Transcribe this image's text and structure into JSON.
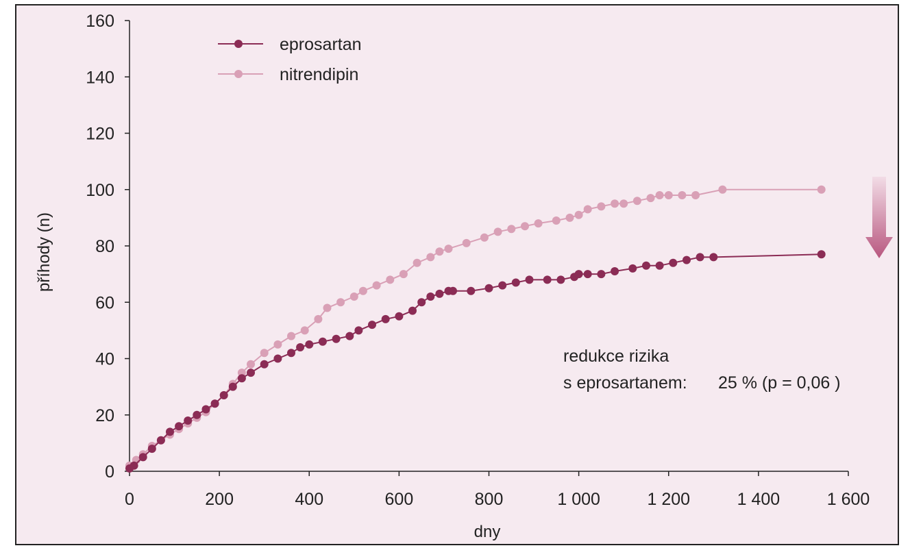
{
  "chart_data": {
    "type": "line",
    "xlabel": "dny",
    "ylabel": "příhody (n)",
    "xlim": [
      0,
      1600
    ],
    "ylim": [
      0,
      160
    ],
    "xticks": [
      0,
      200,
      400,
      600,
      800,
      1000,
      1200,
      1400,
      1600
    ],
    "xtick_labels": [
      "0",
      "200",
      "400",
      "600",
      "800",
      "1 000",
      "1 200",
      "1 400",
      "1 600"
    ],
    "yticks": [
      0,
      20,
      40,
      60,
      80,
      100,
      120,
      140,
      160
    ],
    "ytick_labels": [
      "0",
      "20",
      "40",
      "60",
      "80",
      "100",
      "120",
      "140",
      "160"
    ],
    "grid": false,
    "legend_position": "top-left",
    "series": [
      {
        "name": "eprosartan",
        "color": "#8b2c55",
        "x": [
          0,
          10,
          30,
          50,
          70,
          90,
          110,
          130,
          150,
          170,
          190,
          210,
          230,
          250,
          270,
          300,
          330,
          360,
          380,
          400,
          430,
          460,
          490,
          510,
          540,
          570,
          600,
          630,
          650,
          670,
          690,
          710,
          720,
          760,
          800,
          830,
          860,
          890,
          930,
          960,
          990,
          1000,
          1020,
          1050,
          1080,
          1120,
          1150,
          1180,
          1210,
          1240,
          1270,
          1300,
          1540
        ],
        "y": [
          1,
          2,
          5,
          8,
          11,
          14,
          16,
          18,
          20,
          22,
          24,
          27,
          30,
          33,
          35,
          38,
          40,
          42,
          44,
          45,
          46,
          47,
          48,
          50,
          52,
          54,
          55,
          57,
          60,
          62,
          63,
          64,
          64,
          64,
          65,
          66,
          67,
          68,
          68,
          68,
          69,
          70,
          70,
          70,
          71,
          72,
          73,
          73,
          74,
          75,
          76,
          76,
          77
        ]
      },
      {
        "name": "nitrendipin",
        "color": "#d9a0b6",
        "x": [
          0,
          15,
          30,
          50,
          70,
          90,
          110,
          130,
          150,
          170,
          190,
          210,
          230,
          250,
          270,
          300,
          330,
          360,
          390,
          420,
          440,
          470,
          500,
          520,
          550,
          580,
          610,
          640,
          670,
          690,
          710,
          750,
          790,
          820,
          850,
          880,
          910,
          950,
          980,
          1000,
          1020,
          1050,
          1080,
          1100,
          1130,
          1160,
          1180,
          1200,
          1230,
          1260,
          1320,
          1540
        ],
        "y": [
          2,
          4,
          6,
          9,
          11,
          13,
          15,
          17,
          19,
          21,
          24,
          27,
          31,
          35,
          38,
          42,
          45,
          48,
          50,
          54,
          58,
          60,
          62,
          64,
          66,
          68,
          70,
          74,
          76,
          78,
          79,
          81,
          83,
          85,
          86,
          87,
          88,
          89,
          90,
          91,
          93,
          94,
          95,
          95,
          96,
          97,
          98,
          98,
          98,
          98,
          100,
          100
        ]
      }
    ],
    "annotations": [
      "redukce rizika",
      "s eprosartanem:",
      "25 % (p = 0,06 )"
    ]
  }
}
